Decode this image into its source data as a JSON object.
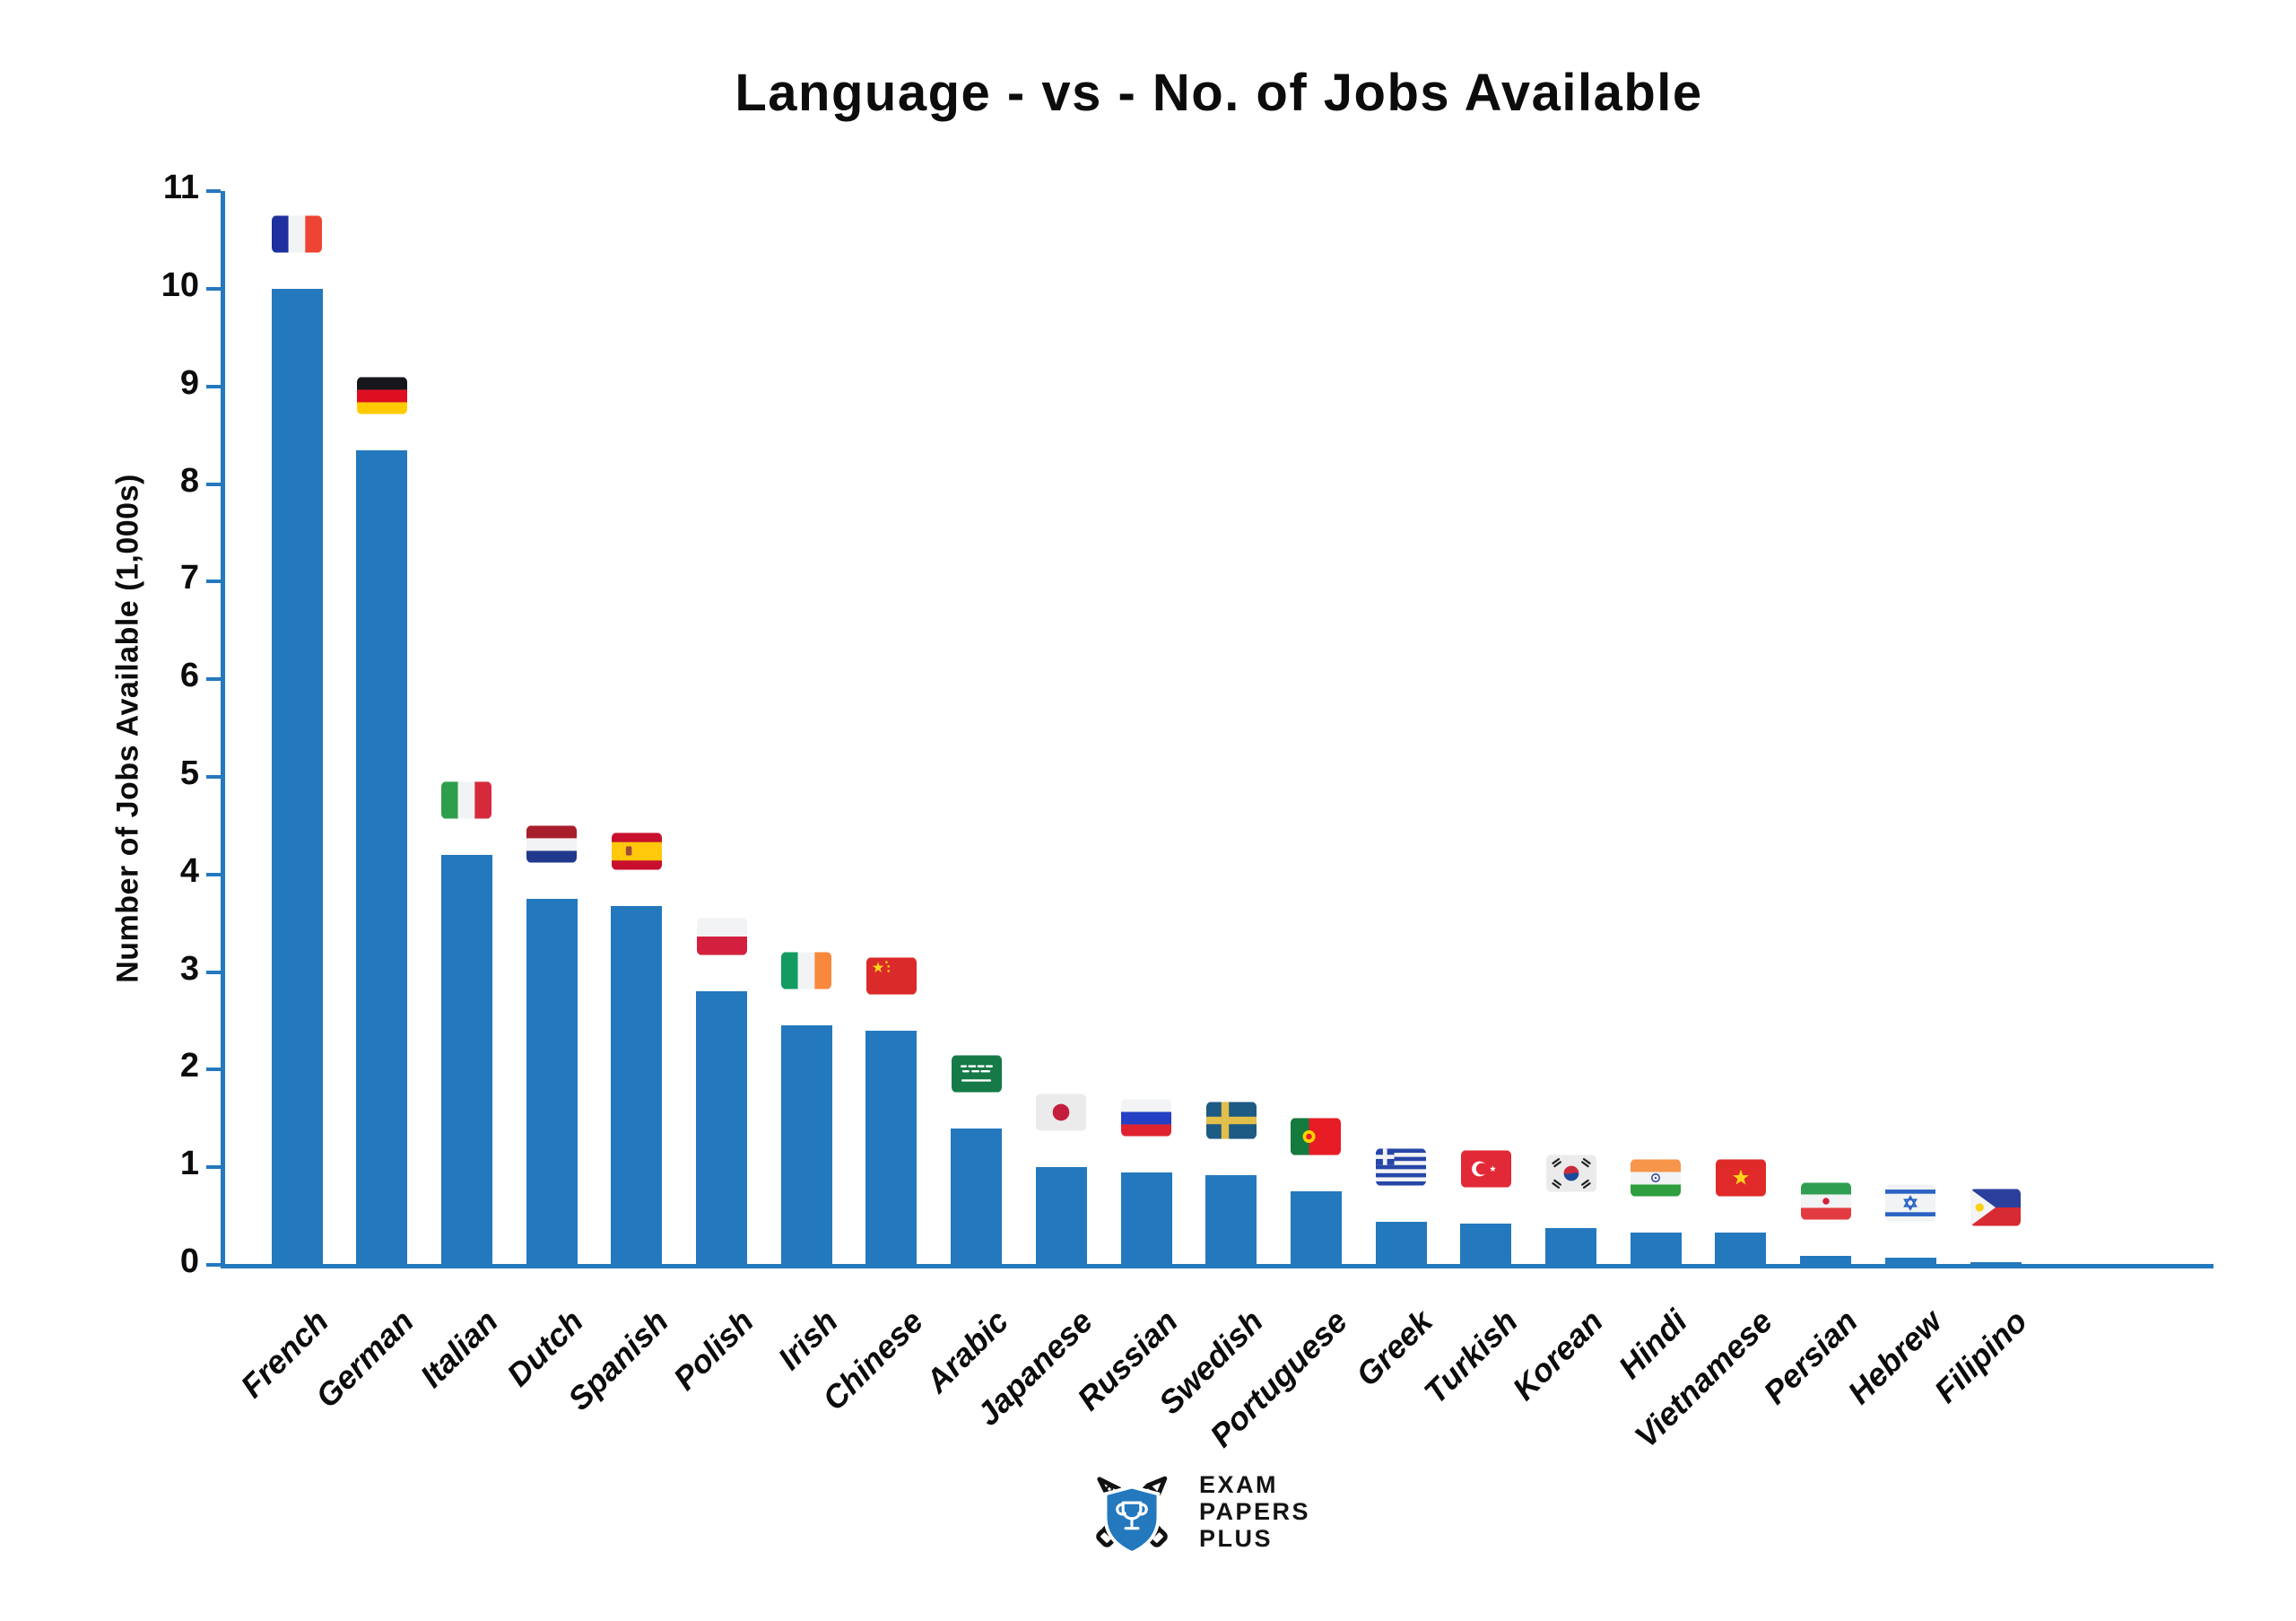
{
  "header": {
    "title": "Language - vs - No. of Jobs Available"
  },
  "chart_data": {
    "type": "bar",
    "title": "Language - vs - No. of Jobs Available",
    "xlabel": "",
    "ylabel": "Number of Jobs Available (1,000s)",
    "ylim": [
      0,
      11
    ],
    "yticks": [
      0,
      1,
      2,
      3,
      4,
      5,
      6,
      7,
      8,
      9,
      10,
      11
    ],
    "grid": false,
    "legend": "none",
    "bar_color": "#2478BE",
    "axis_color": "#2478BE",
    "categories": [
      "French",
      "German",
      "Italian",
      "Dutch",
      "Spanish",
      "Polish",
      "Irish",
      "Chinese",
      "Arabic",
      "Japanese",
      "Russian",
      "Swedish",
      "Portuguese",
      "Greek",
      "Turkish",
      "Korean",
      "Hindi",
      "Vietnamese",
      "Persian",
      "Hebrew",
      "Filipino"
    ],
    "values": [
      10,
      8.35,
      4.2,
      3.75,
      3.68,
      2.8,
      2.45,
      2.4,
      1.4,
      1.0,
      0.95,
      0.92,
      0.75,
      0.44,
      0.42,
      0.38,
      0.33,
      0.33,
      0.09,
      0.07,
      0.03
    ],
    "flag_icons": [
      "flag-france-icon",
      "flag-germany-icon",
      "flag-italy-icon",
      "flag-netherlands-icon",
      "flag-spain-icon",
      "flag-poland-icon",
      "flag-ireland-icon",
      "flag-china-icon",
      "flag-saudi-arabia-icon",
      "flag-japan-icon",
      "flag-russia-icon",
      "flag-sweden-icon",
      "flag-portugal-icon",
      "flag-greece-icon",
      "flag-turkey-icon",
      "flag-south-korea-icon",
      "flag-india-icon",
      "flag-vietnam-icon",
      "flag-iran-icon",
      "flag-israel-icon",
      "flag-philippines-icon"
    ]
  },
  "footer": {
    "logo_lines": [
      "EXAM",
      "PAPERS",
      "PLUS"
    ]
  }
}
